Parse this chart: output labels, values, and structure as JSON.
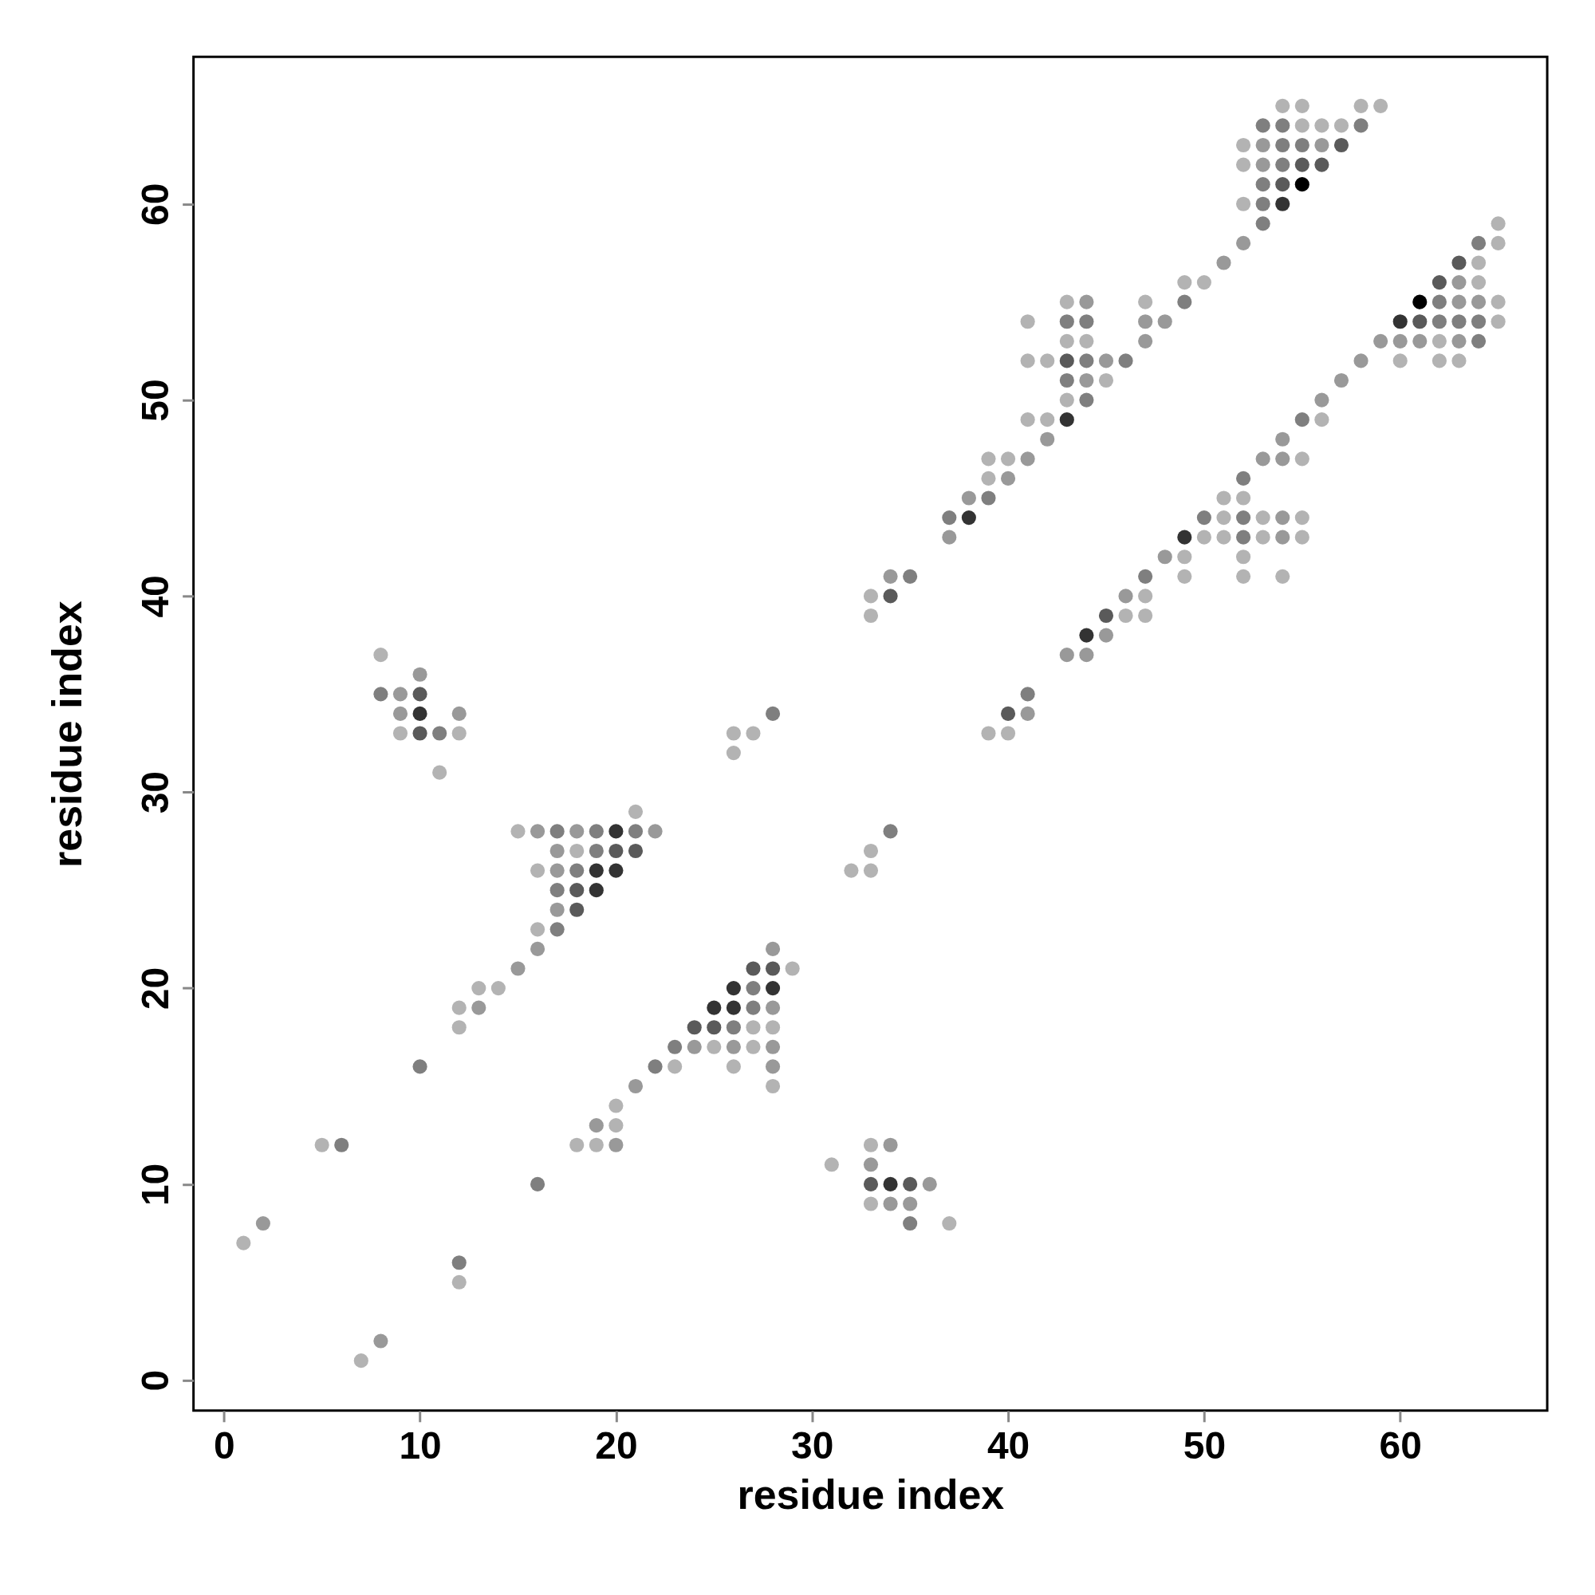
{
  "chart_data": {
    "type": "scatter",
    "xlabel": "residue index",
    "ylabel": "residue index",
    "xlim": [
      -1.55,
      67.5
    ],
    "ylim": [
      -1.55,
      67.5
    ],
    "xticks": [
      0,
      10,
      20,
      30,
      40,
      50,
      60
    ],
    "yticks": [
      0,
      10,
      20,
      30,
      40,
      50,
      60
    ],
    "grid": false,
    "legend": false,
    "marker": "circle",
    "series": [
      {
        "color": "#b3b3b3",
        "x": [
          54,
          55,
          58,
          59,
          55,
          56,
          57,
          52,
          52,
          52,
          65,
          65,
          64,
          49,
          50,
          64,
          43,
          47,
          65,
          41,
          65,
          43,
          44,
          62,
          41,
          42,
          60,
          62,
          63,
          45,
          43,
          41,
          42,
          56,
          39,
          40,
          55,
          39,
          51,
          52,
          51,
          53,
          55,
          50,
          51,
          53,
          55,
          49,
          52,
          49,
          52,
          54,
          33,
          47,
          33,
          46,
          47,
          8,
          9,
          12,
          26,
          27,
          39,
          40,
          26,
          11,
          21,
          15,
          18,
          33,
          16,
          32,
          33,
          16,
          29,
          13,
          14,
          12,
          12,
          27,
          28,
          25,
          27,
          23,
          26,
          28,
          20,
          20,
          5,
          18,
          19,
          33,
          31,
          33,
          37,
          1,
          12,
          7
        ],
        "values": [
          65,
          65,
          65,
          65,
          64,
          64,
          64,
          63,
          62,
          60,
          59,
          58,
          57,
          56,
          56,
          56,
          55,
          55,
          55,
          54,
          54,
          53,
          53,
          53,
          52,
          52,
          52,
          52,
          52,
          51,
          50,
          49,
          49,
          49,
          47,
          47,
          47,
          46,
          45,
          45,
          44,
          44,
          44,
          43,
          43,
          43,
          43,
          42,
          42,
          41,
          41,
          41,
          40,
          40,
          39,
          39,
          39,
          37,
          33,
          33,
          33,
          33,
          33,
          33,
          32,
          31,
          29,
          28,
          27,
          27,
          26,
          26,
          26,
          23,
          21,
          20,
          20,
          19,
          18,
          18,
          18,
          17,
          17,
          16,
          16,
          15,
          14,
          13,
          12,
          12,
          12,
          12,
          11,
          9,
          8,
          7,
          5,
          1
        ]
      },
      {
        "color": "#999999",
        "x": [
          53,
          56,
          53,
          52,
          51,
          63,
          44,
          63,
          64,
          47,
          48,
          47,
          59,
          60,
          61,
          63,
          45,
          58,
          44,
          57,
          56,
          42,
          54,
          41,
          53,
          54,
          40,
          38,
          54,
          37,
          54,
          48,
          34,
          46,
          45,
          43,
          44,
          10,
          9,
          9,
          12,
          41,
          16,
          18,
          22,
          17,
          17,
          17,
          16,
          28,
          15,
          13,
          28,
          24,
          26,
          28,
          28,
          21,
          19,
          20,
          34,
          33,
          36,
          34,
          35,
          2,
          8
        ],
        "values": [
          63,
          63,
          62,
          58,
          57,
          56,
          55,
          55,
          55,
          54,
          54,
          53,
          53,
          53,
          53,
          53,
          52,
          52,
          51,
          51,
          50,
          48,
          48,
          47,
          47,
          47,
          46,
          45,
          44,
          43,
          43,
          42,
          41,
          40,
          38,
          37,
          37,
          36,
          35,
          34,
          34,
          34,
          28,
          28,
          28,
          27,
          26,
          24,
          22,
          22,
          21,
          19,
          19,
          17,
          17,
          17,
          16,
          15,
          13,
          12,
          12,
          11,
          10,
          9,
          9,
          8,
          2
        ]
      },
      {
        "color": "#7f7f7f",
        "x": [
          53,
          54,
          58,
          54,
          55,
          54,
          53,
          53,
          53,
          64,
          49,
          62,
          43,
          44,
          62,
          63,
          64,
          64,
          44,
          46,
          43,
          44,
          55,
          52,
          39,
          37,
          50,
          52,
          52,
          35,
          47,
          8,
          41,
          28,
          11,
          17,
          19,
          21,
          34,
          19,
          18,
          17,
          17,
          27,
          27,
          26,
          23,
          10,
          22,
          6,
          16,
          35,
          12
        ],
        "values": [
          64,
          64,
          64,
          63,
          63,
          62,
          61,
          60,
          59,
          58,
          55,
          55,
          54,
          54,
          54,
          54,
          54,
          53,
          52,
          52,
          51,
          50,
          49,
          46,
          45,
          44,
          44,
          44,
          43,
          41,
          41,
          35,
          35,
          34,
          33,
          28,
          28,
          28,
          28,
          27,
          26,
          25,
          23,
          20,
          19,
          18,
          17,
          16,
          16,
          12,
          10,
          8,
          6
        ]
      },
      {
        "color": "#5a5a5a",
        "x": [
          57,
          55,
          56,
          54,
          63,
          62,
          61,
          43,
          34,
          45,
          10,
          40,
          10,
          20,
          21,
          18,
          18,
          27,
          28,
          24,
          25,
          33,
          35
        ],
        "values": [
          63,
          62,
          62,
          61,
          57,
          56,
          54,
          52,
          40,
          39,
          35,
          34,
          33,
          27,
          27,
          25,
          24,
          21,
          21,
          18,
          18,
          10,
          10
        ]
      },
      {
        "color": "#333333",
        "x": [
          54,
          60,
          43,
          38,
          49,
          44,
          10,
          20,
          19,
          20,
          19,
          26,
          28,
          25,
          26,
          34
        ],
        "values": [
          60,
          54,
          49,
          44,
          43,
          38,
          34,
          28,
          26,
          26,
          25,
          20,
          20,
          19,
          19,
          10
        ]
      },
      {
        "color": "#000000",
        "x": [
          55,
          61
        ],
        "values": [
          61,
          55
        ]
      }
    ]
  }
}
